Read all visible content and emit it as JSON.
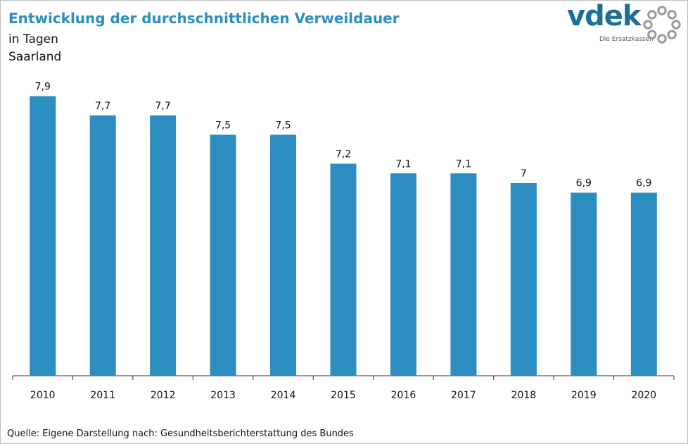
{
  "header": {
    "title": "Entwicklung der durchschnittlichen Verweildauer",
    "subtitle": "in Tagen",
    "region": "Saarland"
  },
  "logo": {
    "word": "vdek",
    "tagline": "Die Ersatzkassen",
    "colors": {
      "word": "#1c6f96",
      "ring": "#9a9a9a"
    }
  },
  "chart_data": {
    "type": "bar",
    "categories": [
      "2010",
      "2011",
      "2012",
      "2013",
      "2014",
      "2015",
      "2016",
      "2017",
      "2018",
      "2019",
      "2020"
    ],
    "values": [
      7.9,
      7.7,
      7.7,
      7.5,
      7.5,
      7.2,
      7.1,
      7.1,
      7.0,
      6.9,
      6.9
    ],
    "data_labels": [
      "7,9",
      "7,7",
      "7,7",
      "7,5",
      "7,5",
      "7,2",
      "7,1",
      "7,1",
      "7",
      "6,9",
      "6,9"
    ],
    "xlabel": "",
    "ylabel": "",
    "ylim": [
      5,
      8
    ],
    "grid": false,
    "bar_color": "#2b8dc0"
  },
  "footer": {
    "source": "Quelle: Eigene Darstellung nach: Gesundheitsberichterstattung  des Bundes"
  }
}
